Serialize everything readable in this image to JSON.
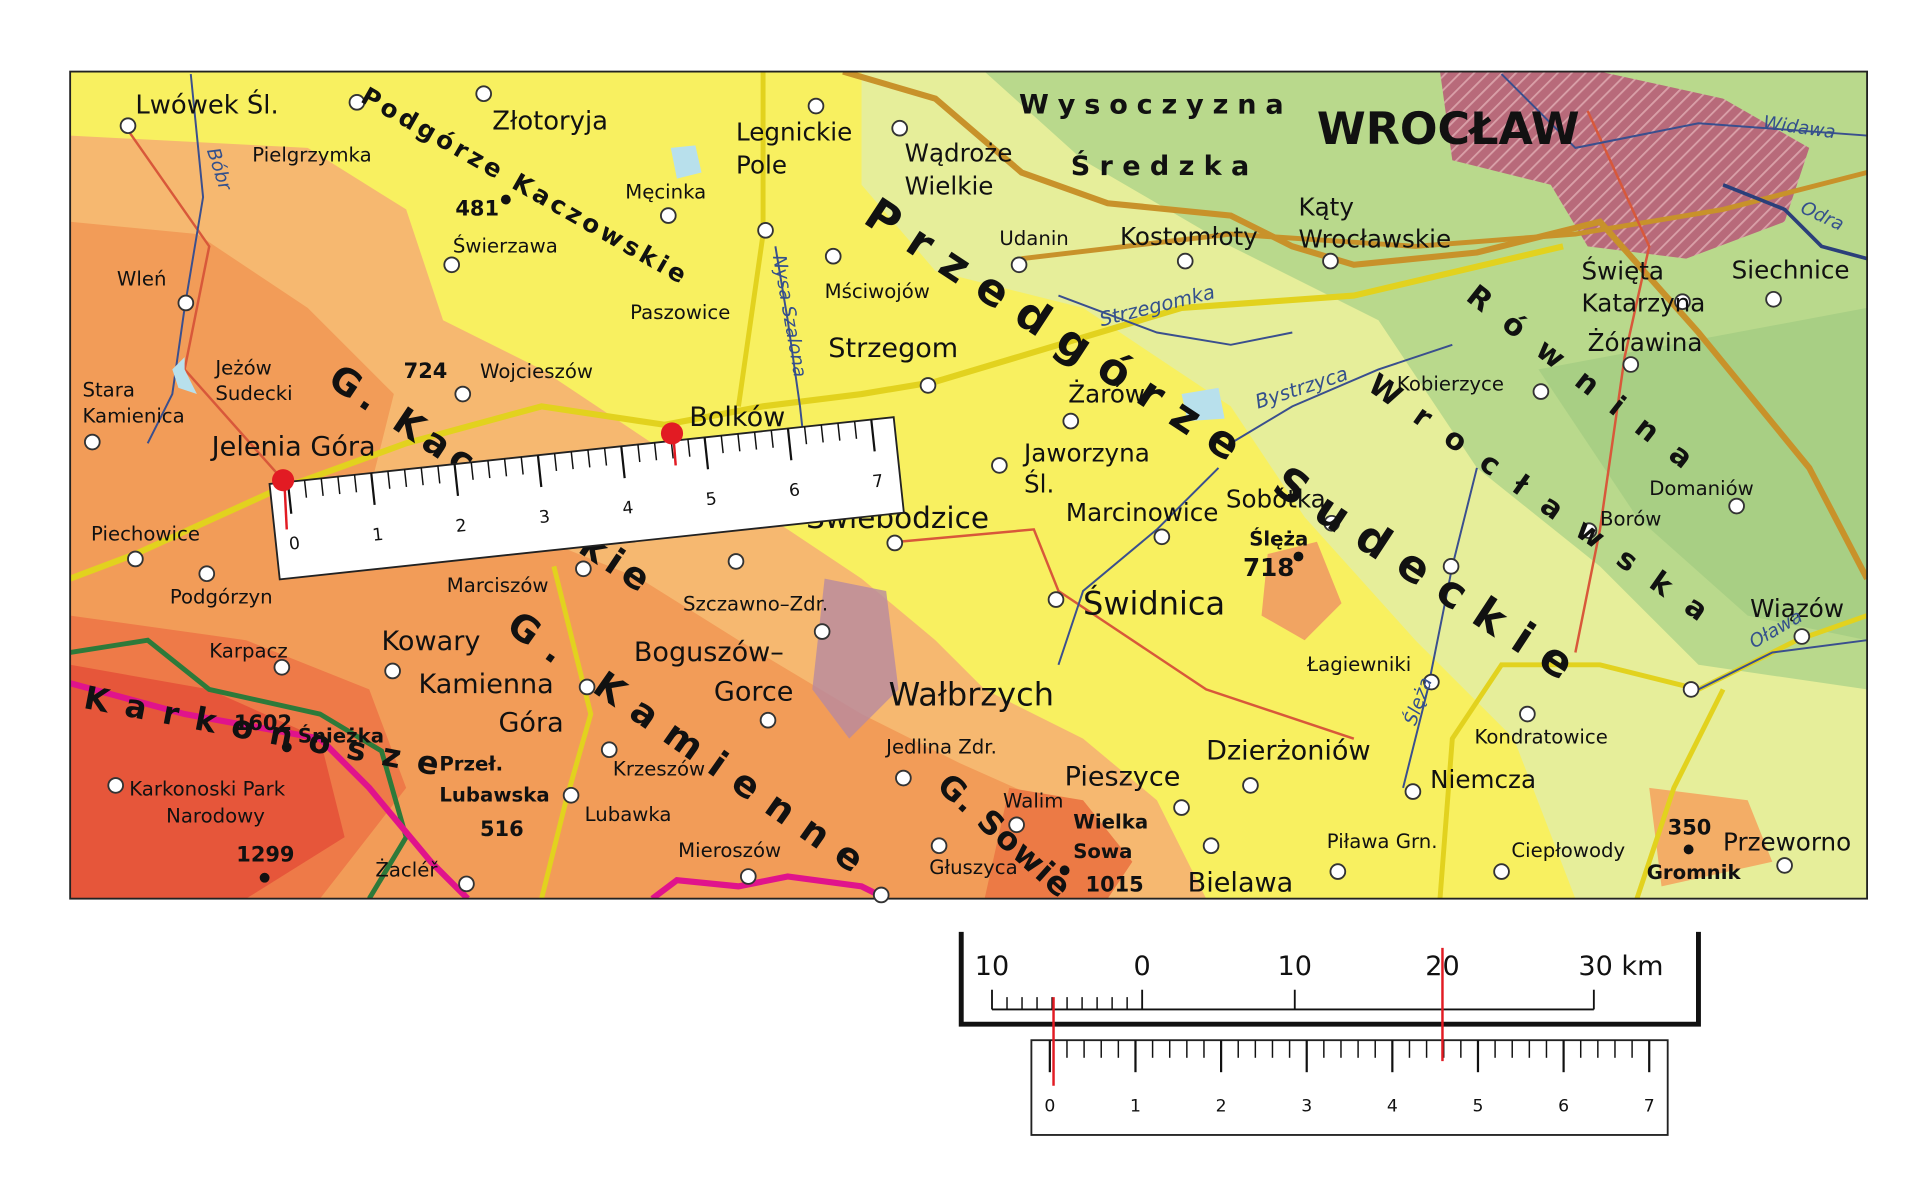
{
  "map": {
    "labels": [
      "Lwówek Śl.",
      "Pielgrzymka",
      "Bóbr",
      "Podgórze Kaczowskie",
      "Złotoryja",
      "481",
      "Świerzawa",
      "Męcinka",
      "Legnickie",
      "Pole",
      "Wądroże",
      "Wielkie",
      "Wysoczyzna",
      "Średzka",
      "WROCŁAW",
      "Widawa",
      "Odra",
      "Wleń",
      "Przedgórze Sudeckie",
      "Udanin",
      "Kostomłoty",
      "Kąty",
      "Wrocławskie",
      "Święta",
      "Katarzyna",
      "Siechnice",
      "Mściwojów",
      "Paszowice",
      "Nysa Szalona",
      "Strzegomka",
      "Równina",
      "Wrocławska",
      "Żórawina",
      "Stara",
      "Kamienica",
      "Jeżów",
      "Sudecki",
      "724",
      "Wojcieszów",
      "Strzegom",
      "Kobierzyce",
      "Bystrzyca",
      "Żarów",
      "G. Kaczawskie",
      "Bolków",
      "Jelenia Góra",
      "Jaworzyna",
      "Śl.",
      "Domaniów",
      "Sobótka",
      "Marcinowice",
      "Świebodzice",
      "Borów",
      "Piechowice",
      "Ślęża",
      "718",
      "Świdnica",
      "Podgórzyn",
      "Marciszów",
      "Szczawno–Zdr.",
      "Wiązów",
      "Kowary",
      "Karpacz",
      "Łagiewniki",
      "Oława",
      "Boguszów–",
      "Gorce",
      "G. Kamienne",
      "Kamienna",
      "Góra",
      "Wałbrzych",
      "Karkonosze",
      "1602",
      "Śnieżka",
      "Ślęża",
      "Kondratowice",
      "Jedlina Zdr.",
      "Krzeszów",
      "Przeł.",
      "Lubawska",
      "516",
      "Dzierżoniów",
      "Niemcza",
      "Pieszyce",
      "G. Sowie",
      "Walim",
      "Karkonoski Park",
      "Narodowy",
      "Wielka",
      "Sowa",
      "350",
      "Lubawka",
      "Przeworno",
      "Piława Grn.",
      "Ciepłowody",
      "1299",
      "Mieroszów",
      "Głuszyca",
      "Żacléř",
      "Gromnik",
      "Bielawa",
      "1015"
    ]
  },
  "ruler_overlay": {
    "ticks": [
      0,
      1,
      2,
      3,
      4,
      5,
      6,
      7
    ]
  },
  "scale_bar": {
    "labels": [
      "10",
      "0",
      "10",
      "20",
      "30 km"
    ]
  },
  "ruler_bottom": {
    "ticks": [
      0,
      1,
      2,
      3,
      4,
      5,
      6,
      7
    ]
  }
}
